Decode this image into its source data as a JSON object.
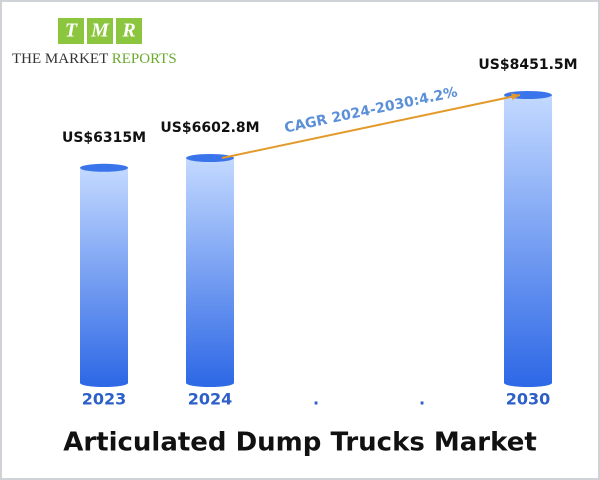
{
  "logo": {
    "letters": [
      "T",
      "M",
      "R"
    ],
    "text_dark": "THE MARKET",
    "text_green": "REPORTS"
  },
  "chart_data": {
    "type": "bar",
    "title": "Articulated Dump Trucks Market",
    "categories": [
      "2023",
      "2024",
      ".",
      ".",
      "2030"
    ],
    "values": [
      6315,
      6602.8,
      null,
      null,
      8451.5
    ],
    "value_labels": [
      "US$6315M",
      "US$6602.8M",
      null,
      null,
      "US$8451.5M"
    ],
    "annotation": "CAGR 2024-2030:4.2%",
    "color": "#3a74ea"
  }
}
